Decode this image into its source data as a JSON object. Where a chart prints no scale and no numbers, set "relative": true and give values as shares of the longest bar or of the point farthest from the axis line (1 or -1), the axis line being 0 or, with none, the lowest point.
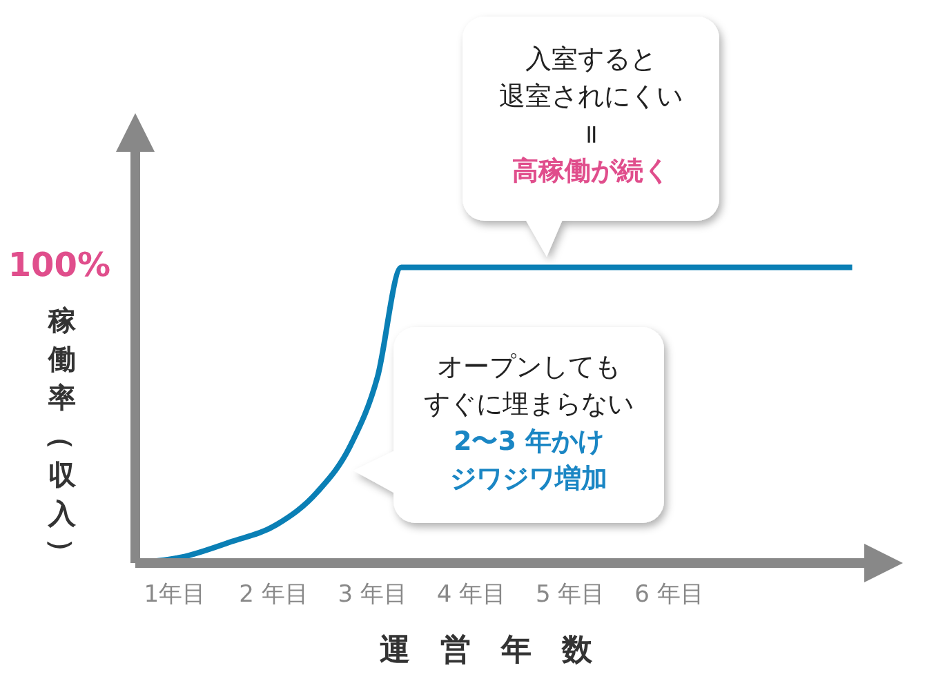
{
  "chart_data": {
    "type": "line",
    "relative": true,
    "ylabel": "稼働率（収入）",
    "xlabel": "運営年数",
    "x": [
      0.6,
      1.07,
      1.55,
      2.03,
      2.44,
      2.78,
      3.05,
      3.29,
      7.85
    ],
    "xlim": [
      0.6,
      8.0
    ],
    "xticks": [
      {
        "value": 1,
        "label": "1年目"
      },
      {
        "value": 2,
        "label": "2 年目"
      },
      {
        "value": 3,
        "label": "3 年目"
      },
      {
        "value": 4,
        "label": "4 年目"
      },
      {
        "value": 5,
        "label": "5 年目"
      },
      {
        "value": 6,
        "label": "6 年目"
      }
    ],
    "series": [
      {
        "color": "#0a7fb5",
        "values": [
          0,
          0.02,
          0.07,
          0.13,
          0.24,
          0.4,
          0.63,
          1,
          1
        ]
      }
    ],
    "marker": "none",
    "line_style": "solid",
    "grid": false,
    "legend": false,
    "tick_labels": "x",
    "annotations": [
      "入室すると",
      "退室されにくい",
      "=",
      "高稼働が続く",
      "オープンしても",
      "すぐに埋まらない",
      "2〜3 年かけ",
      "ジワジワ増加",
      "100%"
    ]
  }
}
